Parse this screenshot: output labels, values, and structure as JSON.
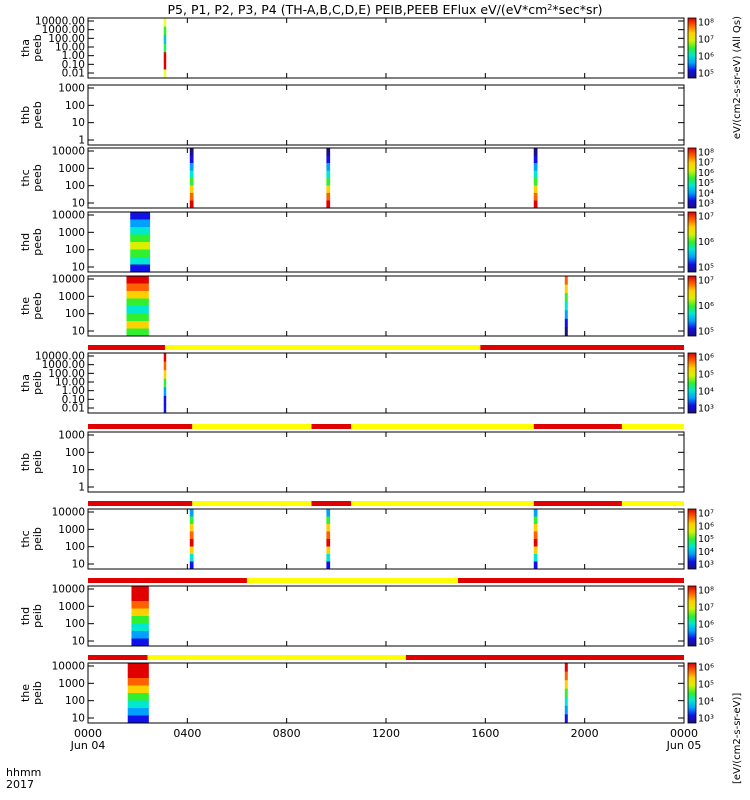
{
  "chart_data": {
    "type": "heatmap",
    "title": "P5, P1, P2, P3, P4 (TH-A,B,C,D,E) PEIB,PEEB EFlux eV/(eV*cm",
    "title_sup": "2",
    "title_tail": "*sec*sr)",
    "colorbar_label_a": "eV/(cm2-s-sr-eV) (All Qs)",
    "colorbar_label_b": "[eV/(cm2-s-sr-eV)]",
    "x_axis": {
      "ticks": [
        "0000",
        "0400",
        "0800",
        "1200",
        "1600",
        "2000",
        "0000"
      ],
      "tick_hours": [
        0,
        4,
        8,
        12,
        16,
        20,
        24
      ],
      "dates": [
        "Jun 04",
        "Jun 05"
      ],
      "corner_top": "hhmm",
      "corner_bottom": "2017",
      "xlim_hours": [
        0,
        24
      ]
    },
    "colormap": [
      "#1a0f80",
      "#1010e8",
      "#00a0ff",
      "#00e8d0",
      "#30f030",
      "#d8f000",
      "#ffd000",
      "#ff6000",
      "#e00000"
    ],
    "panels": [
      {
        "label1": "tha",
        "label2": "peeb",
        "ytick_labels": [
          "10000.00",
          "1000.00",
          "100.00",
          "10.00",
          "1.00",
          "0.10",
          "0.01"
        ],
        "cbar_ticks": [
          "10⁸",
          "10⁷",
          "10⁶",
          "10⁵"
        ],
        "status_bar": [],
        "blocks": [
          {
            "t0": 3.05,
            "t1": 3.15,
            "stripes": [
              "#e8ff30",
              "#30f030",
              "#00c8c0",
              "#20f060",
              "#e00000",
              "#e00000",
              "#e8ff30"
            ]
          }
        ]
      },
      {
        "label1": "thb",
        "label2": "peeb",
        "ytick_labels": [
          "1000",
          "100",
          "10",
          "1"
        ],
        "cbar_ticks": [],
        "status_bar": [],
        "blocks": []
      },
      {
        "label1": "thc",
        "label2": "peeb",
        "ytick_labels": [
          "10000",
          "1000",
          "100",
          "10"
        ],
        "cbar_ticks": [
          "10⁸",
          "10⁷",
          "10⁶",
          "10⁵",
          "10⁴",
          "10³"
        ],
        "status_bar": [],
        "blocks": [
          {
            "t0": 4.1,
            "t1": 4.25,
            "stripes": [
              "#1a0f80",
              "#1010e8",
              "#00a0ff",
              "#00e8d0",
              "#30f030",
              "#ffd000",
              "#ff6000",
              "#e00000"
            ]
          },
          {
            "t0": 9.6,
            "t1": 9.75,
            "stripes": [
              "#1a0f80",
              "#1010e8",
              "#00a0ff",
              "#00e8d0",
              "#30f030",
              "#ffd000",
              "#ff6000",
              "#e00000"
            ]
          },
          {
            "t0": 17.95,
            "t1": 18.1,
            "stripes": [
              "#1a0f80",
              "#1010e8",
              "#00a0ff",
              "#00e8d0",
              "#30f030",
              "#ffd000",
              "#ff6000",
              "#e00000"
            ]
          }
        ]
      },
      {
        "label1": "thd",
        "label2": "peeb",
        "ytick_labels": [
          "10000",
          "1000",
          "100",
          "10"
        ],
        "cbar_ticks": [
          "10⁷",
          "10⁶",
          "10⁵"
        ],
        "status_bar": [],
        "blocks": [
          {
            "t0": 1.7,
            "t1": 2.5,
            "stripes": [
              "#1010e8",
              "#00a0ff",
              "#00e8d0",
              "#30f030",
              "#d8f000",
              "#30f030",
              "#00e8d0",
              "#1010e8"
            ]
          }
        ]
      },
      {
        "label1": "the",
        "label2": "peeb",
        "ytick_labels": [
          "10000",
          "1000",
          "100",
          "10"
        ],
        "cbar_ticks": [
          "10⁷",
          "10⁶",
          "10⁵"
        ],
        "status_bar": [],
        "blocks": [
          {
            "t0": 1.55,
            "t1": 2.45,
            "stripes": [
              "#e00000",
              "#ff6000",
              "#ffd000",
              "#30f030",
              "#00e8d0",
              "#30f030",
              "#ffd000",
              "#30f030"
            ]
          },
          {
            "t0": 19.2,
            "t1": 19.32,
            "stripes": [
              "#ff6000",
              "#ffd000",
              "#30f030",
              "#00e8d0",
              "#00a0ff",
              "#1010e8",
              "#1a0f80"
            ]
          }
        ]
      },
      {
        "label1": "tha",
        "label2": "peib",
        "ytick_labels": [
          "10000.00",
          "1000.00",
          "100.00",
          "10.00",
          "1.00",
          "0.10",
          "0.01"
        ],
        "cbar_ticks": [
          "10⁶",
          "10⁵",
          "10⁴",
          "10³"
        ],
        "status_bar": [
          {
            "t0": 0,
            "t1": 3.1,
            "color": "#e00000"
          },
          {
            "t0": 3.1,
            "t1": 15.8,
            "color": "#ffff00"
          },
          {
            "t0": 15.8,
            "t1": 24,
            "color": "#e00000"
          }
        ],
        "blocks": [
          {
            "t0": 3.05,
            "t1": 3.15,
            "stripes": [
              "#e00000",
              "#ff6000",
              "#ffd000",
              "#30f030",
              "#00a0ff",
              "#1010e8",
              "#1010e8"
            ]
          }
        ]
      },
      {
        "label1": "thb",
        "label2": "peib",
        "ytick_labels": [
          "1000",
          "100",
          "10",
          "1"
        ],
        "cbar_ticks": [],
        "status_bar": [
          {
            "t0": 0,
            "t1": 4.2,
            "color": "#e00000"
          },
          {
            "t0": 4.2,
            "t1": 9.0,
            "color": "#ffff00"
          },
          {
            "t0": 9.0,
            "t1": 10.6,
            "color": "#e00000"
          },
          {
            "t0": 10.6,
            "t1": 17.95,
            "color": "#ffff00"
          },
          {
            "t0": 17.95,
            "t1": 21.5,
            "color": "#e00000"
          },
          {
            "t0": 21.5,
            "t1": 24,
            "color": "#ffff00"
          }
        ],
        "blocks": []
      },
      {
        "label1": "thc",
        "label2": "peib",
        "ytick_labels": [
          "10000",
          "1000",
          "100",
          "10"
        ],
        "cbar_ticks": [
          "10⁷",
          "10⁶",
          "10⁵",
          "10⁴",
          "10³"
        ],
        "status_bar": [
          {
            "t0": 0,
            "t1": 4.2,
            "color": "#e00000"
          },
          {
            "t0": 4.2,
            "t1": 9.0,
            "color": "#ffff00"
          },
          {
            "t0": 9.0,
            "t1": 10.6,
            "color": "#e00000"
          },
          {
            "t0": 10.6,
            "t1": 17.95,
            "color": "#ffff00"
          },
          {
            "t0": 17.95,
            "t1": 21.5,
            "color": "#e00000"
          },
          {
            "t0": 21.5,
            "t1": 24,
            "color": "#ffff00"
          }
        ],
        "blocks": [
          {
            "t0": 4.1,
            "t1": 4.25,
            "stripes": [
              "#00a0ff",
              "#30f030",
              "#ffd000",
              "#ff6000",
              "#e00000",
              "#ffd000",
              "#00e8d0",
              "#1010e8"
            ]
          },
          {
            "t0": 9.6,
            "t1": 9.75,
            "stripes": [
              "#00a0ff",
              "#30f030",
              "#ffd000",
              "#ff6000",
              "#e00000",
              "#ffd000",
              "#00e8d0",
              "#1010e8"
            ]
          },
          {
            "t0": 17.95,
            "t1": 18.1,
            "stripes": [
              "#00a0ff",
              "#30f030",
              "#ffd000",
              "#ff6000",
              "#e00000",
              "#ffd000",
              "#00e8d0",
              "#1010e8"
            ]
          }
        ]
      },
      {
        "label1": "thd",
        "label2": "peib",
        "ytick_labels": [
          "10000",
          "1000",
          "100",
          "10"
        ],
        "cbar_ticks": [
          "10⁸",
          "10⁷",
          "10⁶",
          "10⁵"
        ],
        "status_bar": [
          {
            "t0": 0,
            "t1": 6.4,
            "color": "#e00000"
          },
          {
            "t0": 6.4,
            "t1": 14.9,
            "color": "#ffff00"
          },
          {
            "t0": 14.9,
            "t1": 24,
            "color": "#e00000"
          }
        ],
        "blocks": [
          {
            "t0": 1.75,
            "t1": 2.45,
            "stripes": [
              "#e00000",
              "#e00000",
              "#ff6000",
              "#ffd000",
              "#30f030",
              "#00e8d0",
              "#00a0ff",
              "#1010e8"
            ]
          }
        ]
      },
      {
        "label1": "the",
        "label2": "peib",
        "ytick_labels": [
          "10000",
          "1000",
          "100",
          "10"
        ],
        "cbar_ticks": [
          "10⁶",
          "10⁵",
          "10⁴",
          "10³"
        ],
        "status_bar": [
          {
            "t0": 0,
            "t1": 2.4,
            "color": "#e00000"
          },
          {
            "t0": 2.4,
            "t1": 12.8,
            "color": "#ffff00"
          },
          {
            "t0": 12.8,
            "t1": 24,
            "color": "#e00000"
          }
        ],
        "blocks": [
          {
            "t0": 1.6,
            "t1": 2.45,
            "stripes": [
              "#e00000",
              "#e00000",
              "#ff6000",
              "#ffd000",
              "#30f030",
              "#00e8d0",
              "#00a0ff",
              "#1010e8"
            ]
          },
          {
            "t0": 19.2,
            "t1": 19.32,
            "stripes": [
              "#e00000",
              "#ff6000",
              "#ffd000",
              "#30f030",
              "#00e8d0",
              "#00a0ff",
              "#1010e8"
            ]
          }
        ]
      }
    ]
  }
}
